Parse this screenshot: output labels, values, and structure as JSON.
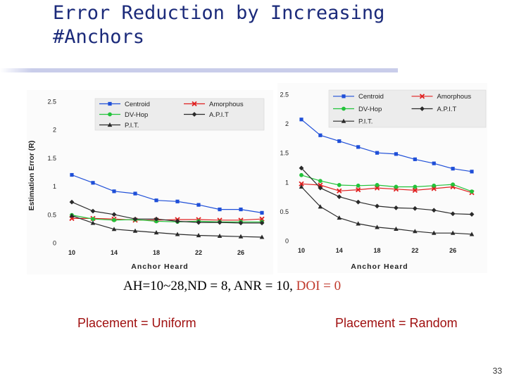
{
  "slide": {
    "title_line1": "Error Reduction by Increasing",
    "title_line2": "#Anchors",
    "params_main": "AH=10~28,ND = 8, ANR = 10, ",
    "params_doi": "DOI = 0",
    "placement_left": "Placement = Uniform",
    "placement_right": "Placement = Random",
    "page_number": "33"
  },
  "colors": {
    "title": "#1b2a7a",
    "centroid": "#1f4fd8",
    "amorphous": "#e02020",
    "dvhop": "#22c33a",
    "apit": "#2a2a2a",
    "pit": "#2a2a2a",
    "placement_text": "#a01010",
    "doi_text": "#c0392b"
  },
  "chart_data": [
    {
      "type": "line",
      "ylabel": "Estimation Error (R)",
      "xlabel": "Anchor Heard",
      "yticks": [
        "0",
        "0.5",
        "1",
        "1.5",
        "2",
        "2.5"
      ],
      "xticks": [
        "10",
        "14",
        "18",
        "22",
        "26"
      ],
      "ylim": [
        0,
        2.5
      ],
      "x": [
        10,
        12,
        14,
        16,
        18,
        20,
        22,
        24,
        26,
        28
      ],
      "legend_position": "top",
      "series": [
        {
          "name": "Centroid",
          "marker": "square",
          "values": [
            1.2,
            1.06,
            0.91,
            0.87,
            0.75,
            0.73,
            0.67,
            0.59,
            0.59,
            0.53
          ]
        },
        {
          "name": "Amorphous",
          "marker": "x",
          "values": [
            0.43,
            0.43,
            0.42,
            0.4,
            0.4,
            0.41,
            0.41,
            0.4,
            0.4,
            0.42
          ]
        },
        {
          "name": "DV-Hop",
          "marker": "circle",
          "values": [
            0.49,
            0.42,
            0.4,
            0.41,
            0.38,
            0.37,
            0.38,
            0.37,
            0.37,
            0.37
          ]
        },
        {
          "name": "A.P.I.T",
          "marker": "diamond",
          "values": [
            0.72,
            0.56,
            0.5,
            0.42,
            0.42,
            0.38,
            0.36,
            0.36,
            0.35,
            0.35
          ]
        },
        {
          "name": "P.I.T.",
          "marker": "triangle",
          "values": [
            0.48,
            0.35,
            0.24,
            0.21,
            0.18,
            0.15,
            0.13,
            0.12,
            0.11,
            0.1
          ]
        }
      ]
    },
    {
      "type": "line",
      "ylabel": "",
      "xlabel": "Anchor Heard",
      "yticks": [
        "0",
        "0.5",
        "1",
        "1.5",
        "2",
        "2.5"
      ],
      "xticks": [
        "10",
        "14",
        "18",
        "22",
        "26"
      ],
      "ylim": [
        0,
        2.5
      ],
      "x": [
        10,
        12,
        14,
        16,
        18,
        20,
        22,
        24,
        26,
        28
      ],
      "legend_position": "top",
      "series": [
        {
          "name": "Centroid",
          "marker": "square",
          "values": [
            2.07,
            1.8,
            1.7,
            1.6,
            1.5,
            1.48,
            1.39,
            1.32,
            1.23,
            1.18
          ]
        },
        {
          "name": "Amorphous",
          "marker": "x",
          "values": [
            0.97,
            0.95,
            0.85,
            0.87,
            0.9,
            0.88,
            0.86,
            0.89,
            0.92,
            0.82
          ]
        },
        {
          "name": "DV-Hop",
          "marker": "circle",
          "values": [
            1.12,
            1.02,
            0.95,
            0.94,
            0.95,
            0.92,
            0.92,
            0.94,
            0.96,
            0.84
          ]
        },
        {
          "name": "A.P.I.T",
          "marker": "diamond",
          "values": [
            1.24,
            0.9,
            0.75,
            0.66,
            0.59,
            0.56,
            0.55,
            0.52,
            0.46,
            0.45
          ]
        },
        {
          "name": "P.I.T.",
          "marker": "triangle",
          "values": [
            0.92,
            0.58,
            0.39,
            0.29,
            0.23,
            0.2,
            0.16,
            0.13,
            0.13,
            0.11
          ]
        }
      ]
    }
  ]
}
